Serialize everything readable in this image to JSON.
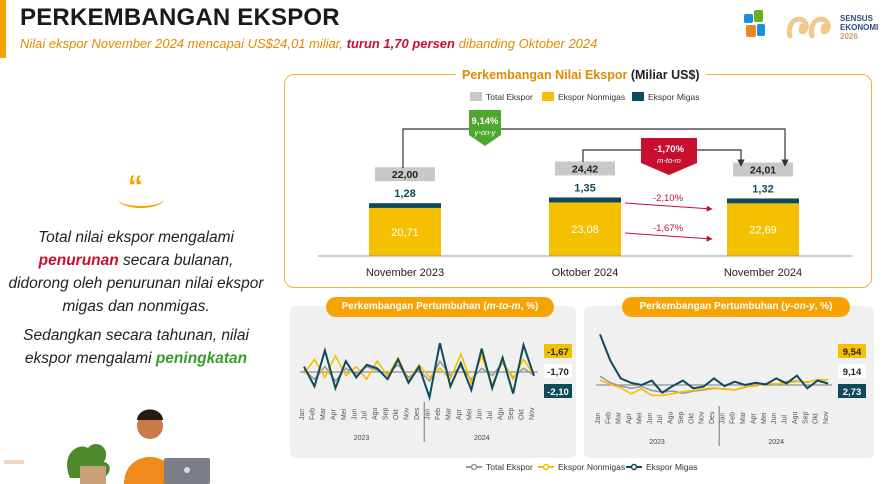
{
  "header": {
    "title": "PERKEMBANGAN EKSPOR",
    "subtitle_pre": "Nilai ekspor November 2024 mencapai US$24,01 miliar, ",
    "subtitle_highlight": "turun 1,70 persen",
    "subtitle_post": " dibanding Oktober 2024"
  },
  "logo": {
    "line1": "SENSUS",
    "line2": "EKONOMI",
    "line3": "2026"
  },
  "quote": {
    "mark": "“",
    "p1_a": "Total nilai ekspor mengalami ",
    "p1_red": "penurunan",
    "p1_b": " secara bulanan, didorong oleh penurunan nilai ekspor migas dan nonmigas.",
    "p2_a": "Sedangkan secara tahunan, nilai ekspor mengalami ",
    "p2_green": "peningkatan"
  },
  "colors": {
    "accent": "#f5a300",
    "total": "#c8c8c8",
    "nonmigas": "#f5c000",
    "migas": "#0e4a5c",
    "down": "#c8102e",
    "up": "#4ea72e"
  },
  "chart_data": [
    {
      "type": "bar",
      "title_pre": "Perkembangan Nilai Ekspor ",
      "title_unit": "(Miliar US$)",
      "legend": [
        "Total Ekspor",
        "Ekspor Nonmigas",
        "Ekspor Migas"
      ],
      "categories": [
        "November 2023",
        "Oktober 2024",
        "November 2024"
      ],
      "series": [
        {
          "name": "Ekspor Nonmigas",
          "values": [
            20.71,
            23.08,
            22.69
          ],
          "labels": [
            "20,71",
            "23,08",
            "22,69"
          ]
        },
        {
          "name": "Ekspor Migas",
          "values": [
            1.28,
            1.35,
            1.32
          ],
          "labels": [
            "1,28",
            "1,35",
            "1,32"
          ]
        }
      ],
      "totals": [
        22.0,
        24.42,
        24.01
      ],
      "total_labels": [
        "22,00",
        "24,42",
        "24,01"
      ],
      "yoy_badge": {
        "value": "9,14%",
        "label": "y-on-y"
      },
      "mtm_badge": {
        "value": "-1,70%",
        "label": "m-to-m"
      },
      "mtm_migas": "-2,10%",
      "mtm_nonmigas": "-1,67%"
    },
    {
      "type": "line",
      "title_pre": "Perkembangan Pertumbuhan ",
      "title_em": "m-to-m",
      "title_post": ", %)",
      "x": [
        "Jan",
        "Feb",
        "Mar",
        "Apr",
        "Mei",
        "Jun",
        "Jul",
        "Agu",
        "Sep",
        "Okt",
        "Nov",
        "Des",
        "Jan",
        "Feb",
        "Mar",
        "Apr",
        "Mei",
        "Jun",
        "Jul",
        "Agu",
        "Sep",
        "Okt",
        "Nov"
      ],
      "years": [
        "2023",
        "2024"
      ],
      "series": [
        {
          "name": "Total Ekspor",
          "values": [
            1,
            -4,
            3,
            -5,
            2,
            -1,
            3,
            1,
            -1,
            4,
            -3,
            1,
            -5,
            6,
            -2,
            3,
            -4,
            2,
            -2,
            5,
            -3,
            2,
            -1.7
          ]
        },
        {
          "name": "Ekspor Nonmigas",
          "values": [
            -1,
            7,
            -3,
            9,
            -2,
            3,
            -4,
            6,
            -2,
            8,
            -5,
            4,
            -3,
            2,
            -4,
            10,
            -6,
            9,
            -7,
            6,
            -4,
            7,
            -1.67
          ]
        },
        {
          "name": "Ekspor Migas",
          "values": [
            3,
            -8,
            12,
            -9,
            6,
            -3,
            4,
            2,
            -4,
            7,
            -6,
            3,
            -14,
            16,
            -8,
            5,
            -10,
            13,
            -9,
            8,
            -12,
            15,
            -2.1
          ]
        }
      ],
      "end_labels": [
        "-1,67",
        "-1,70",
        "-2,10"
      ]
    },
    {
      "type": "line",
      "title_pre": "Perkembangan Pertumbuhan ",
      "title_em": "y-on-y",
      "title_post": ", %)",
      "x": [
        "Jan",
        "Feb",
        "Mar",
        "Apr",
        "Mei",
        "Jun",
        "Jul",
        "Agu",
        "Sep",
        "Okt",
        "Nov",
        "Des",
        "Jan",
        "Feb",
        "Mar",
        "Apr",
        "Mei",
        "Jun",
        "Jul",
        "Agu",
        "Sep",
        "Okt",
        "Nov"
      ],
      "years": [
        "2023",
        "2024"
      ],
      "series": [
        {
          "name": "Total Ekspor",
          "values": [
            16,
            4,
            -2,
            -6,
            -3,
            -10,
            -13,
            -11,
            -15,
            -11,
            -9,
            -6,
            -7,
            -9,
            -4,
            0,
            2,
            1,
            6,
            7,
            5,
            10,
            9.14
          ]
        },
        {
          "name": "Ekspor Nonmigas",
          "values": [
            9,
            1,
            -5,
            -16,
            -7,
            -19,
            -19,
            -16,
            -12,
            -10,
            -7,
            -5,
            -8,
            -9,
            -3,
            -2,
            3,
            2,
            4,
            6,
            6,
            9,
            9.54
          ]
        },
        {
          "name": "Ekspor Migas",
          "values": [
            92,
            44,
            12,
            4,
            0,
            8,
            -14,
            -2,
            8,
            -6,
            -3,
            12,
            -2,
            6,
            0,
            4,
            1,
            12,
            3,
            17,
            -6,
            8,
            2.73
          ]
        }
      ],
      "end_labels": [
        "9,54",
        "9,14",
        "2,73"
      ]
    }
  ],
  "bottom_legend": [
    "Total Ekspor",
    "Ekspor Nonmigas",
    "Ekspor Migas"
  ]
}
